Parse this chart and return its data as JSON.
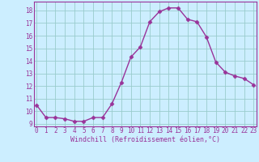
{
  "x": [
    0,
    1,
    2,
    3,
    4,
    5,
    6,
    7,
    8,
    9,
    10,
    11,
    12,
    13,
    14,
    15,
    16,
    17,
    18,
    19,
    20,
    21,
    22,
    23
  ],
  "y": [
    10.5,
    9.5,
    9.5,
    9.4,
    9.2,
    9.2,
    9.5,
    9.5,
    10.6,
    12.3,
    14.3,
    15.1,
    17.1,
    17.9,
    18.2,
    18.2,
    17.3,
    17.1,
    15.9,
    13.9,
    13.1,
    12.8,
    12.6,
    12.1
  ],
  "line_color": "#993399",
  "marker": "D",
  "marker_size": 2.5,
  "bg_color": "#cceeff",
  "grid_color": "#99cccc",
  "xlabel": "Windchill (Refroidissement éolien,°C)",
  "xlabel_color": "#993399",
  "tick_color": "#993399",
  "label_fontsize": 5.5,
  "xlabel_fontsize": 6.0,
  "ylim": [
    8.8,
    18.7
  ],
  "yticks": [
    9,
    10,
    11,
    12,
    13,
    14,
    15,
    16,
    17,
    18
  ],
  "xticks": [
    0,
    1,
    2,
    3,
    4,
    5,
    6,
    7,
    8,
    9,
    10,
    11,
    12,
    13,
    14,
    15,
    16,
    17,
    18,
    19,
    20,
    21,
    22,
    23
  ],
  "xlim": [
    -0.3,
    23.3
  ]
}
